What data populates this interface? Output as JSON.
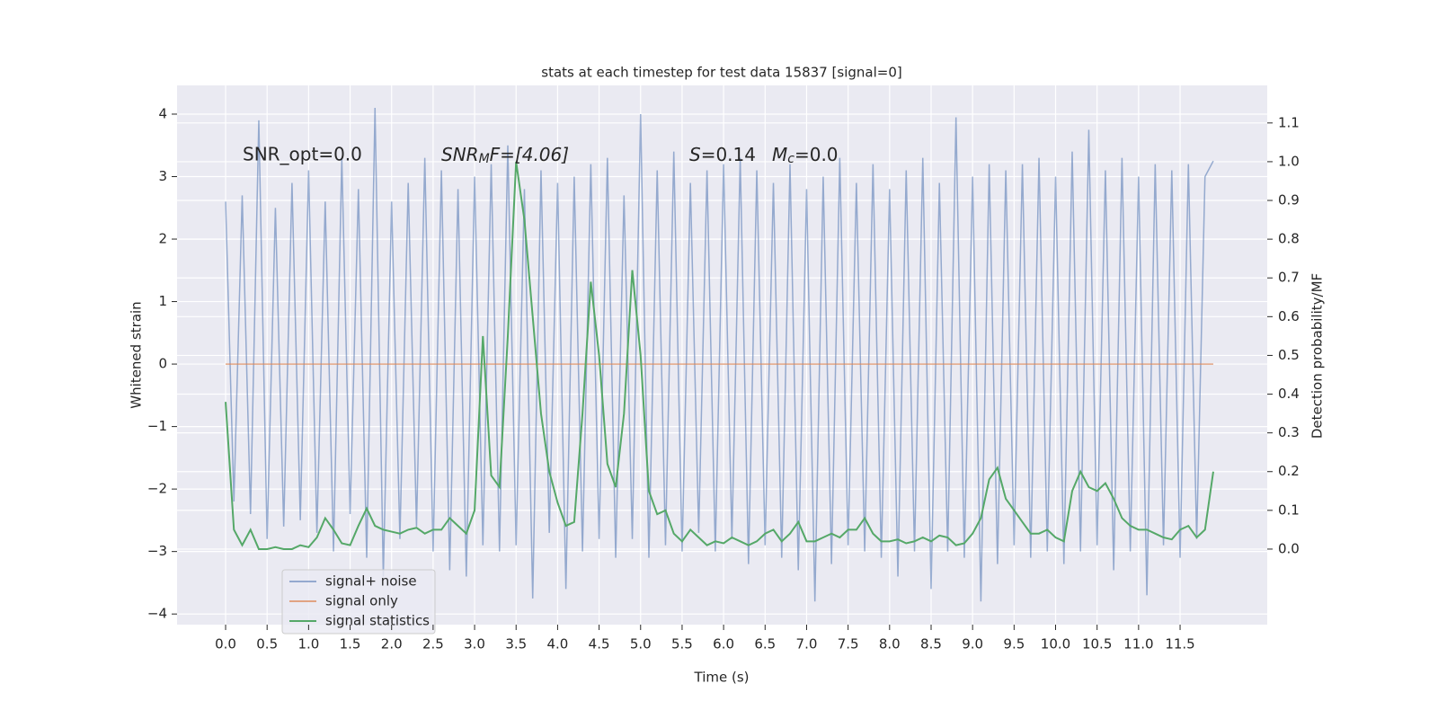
{
  "chart_data": {
    "type": "line",
    "title": "stats at each timestep for test data 15837 [signal=0]",
    "xlabel": "Time (s)",
    "ylabel": "Whitened strain",
    "y2label": "Detection probability/MF",
    "annotations": [
      "SNR_opt=0.0",
      [
        "SNR",
        "M",
        "F=[4.06]"
      ],
      [
        "S",
        "=0.14",
        "M",
        "c",
        "=0.0"
      ]
    ],
    "x": [
      0.0,
      0.1,
      0.2,
      0.3,
      0.4,
      0.5,
      0.6,
      0.7,
      0.8,
      0.9,
      1.0,
      1.1,
      1.2,
      1.3,
      1.4,
      1.5,
      1.6,
      1.7,
      1.8,
      1.9,
      2.0,
      2.1,
      2.2,
      2.3,
      2.4,
      2.5,
      2.6,
      2.7,
      2.8,
      2.9,
      3.0,
      3.1,
      3.2,
      3.3,
      3.4,
      3.5,
      3.6,
      3.7,
      3.8,
      3.9,
      4.0,
      4.1,
      4.2,
      4.3,
      4.4,
      4.5,
      4.6,
      4.7,
      4.8,
      4.9,
      5.0,
      5.1,
      5.2,
      5.3,
      5.4,
      5.5,
      5.6,
      5.7,
      5.8,
      5.9,
      6.0,
      6.1,
      6.2,
      6.3,
      6.4,
      6.5,
      6.6,
      6.7,
      6.8,
      6.9,
      7.0,
      7.1,
      7.2,
      7.3,
      7.4,
      7.5,
      7.6,
      7.7,
      7.8,
      7.9,
      8.0,
      8.1,
      8.2,
      8.3,
      8.4,
      8.5,
      8.6,
      8.7,
      8.8,
      8.9,
      9.0,
      9.1,
      9.2,
      9.3,
      9.4,
      9.5,
      9.6,
      9.7,
      9.8,
      9.9,
      10.0,
      10.1,
      10.2,
      10.3,
      10.4,
      10.5,
      10.6,
      10.7,
      10.8,
      10.9,
      11.0,
      11.1,
      11.2,
      11.3,
      11.4,
      11.5,
      11.6,
      11.7,
      11.8,
      11.9
    ],
    "series": [
      {
        "name": "signal+ noise",
        "color": "#4c72b0",
        "alpha": 0.55,
        "values": [
          2.6,
          -2.2,
          2.7,
          -2.4,
          3.9,
          -2.8,
          2.5,
          -2.6,
          2.9,
          -2.5,
          3.1,
          -2.7,
          2.6,
          -3.0,
          3.3,
          -2.4,
          2.8,
          -3.1,
          4.1,
          -3.4,
          2.6,
          -2.8,
          2.9,
          -2.6,
          3.3,
          -3.0,
          3.1,
          -3.3,
          2.8,
          -3.4,
          3.0,
          -2.9,
          3.2,
          -3.0,
          3.5,
          -2.9,
          2.8,
          -3.75,
          3.1,
          -2.7,
          2.9,
          -3.6,
          3.0,
          -3.0,
          3.2,
          -2.8,
          3.3,
          -3.1,
          2.7,
          -2.8,
          4.0,
          -3.1,
          3.1,
          -2.9,
          3.4,
          -3.0,
          2.9,
          -2.7,
          3.1,
          -3.0,
          3.2,
          -2.8,
          3.3,
          -3.2,
          3.1,
          -2.9,
          2.9,
          -3.1,
          3.2,
          -3.3,
          2.8,
          -3.8,
          3.0,
          -3.2,
          3.3,
          -2.9,
          2.9,
          -3.0,
          3.2,
          -3.1,
          2.8,
          -3.4,
          3.1,
          -3.0,
          3.3,
          -3.6,
          2.9,
          -3.0,
          3.95,
          -3.1,
          3.0,
          -3.8,
          3.2,
          -3.2,
          3.1,
          -2.9,
          3.2,
          -3.1,
          3.3,
          -3.0,
          3.0,
          -3.2,
          3.4,
          -3.0,
          3.75,
          -2.9,
          3.1,
          -3.3,
          3.3,
          -3.0,
          3.0,
          -3.7,
          3.2,
          -2.9,
          3.1,
          -3.1,
          3.2,
          -2.8,
          3.0,
          3.25
        ]
      },
      {
        "name": "signal only",
        "color": "#dd8452",
        "alpha": 0.7,
        "values": [
          0,
          0,
          0,
          0,
          0,
          0,
          0,
          0,
          0,
          0,
          0,
          0,
          0,
          0,
          0,
          0,
          0,
          0,
          0,
          0,
          0,
          0,
          0,
          0,
          0,
          0,
          0,
          0,
          0,
          0,
          0,
          0,
          0,
          0,
          0,
          0,
          0,
          0,
          0,
          0,
          0,
          0,
          0,
          0,
          0,
          0,
          0,
          0,
          0,
          0,
          0,
          0,
          0,
          0,
          0,
          0,
          0,
          0,
          0,
          0,
          0,
          0,
          0,
          0,
          0,
          0,
          0,
          0,
          0,
          0,
          0,
          0,
          0,
          0,
          0,
          0,
          0,
          0,
          0,
          0,
          0,
          0,
          0,
          0,
          0,
          0,
          0,
          0,
          0,
          0,
          0,
          0,
          0,
          0,
          0,
          0,
          0,
          0,
          0,
          0,
          0,
          0,
          0,
          0,
          0,
          0,
          0,
          0,
          0,
          0,
          0,
          0,
          0,
          0,
          0,
          0,
          0,
          0,
          0,
          0
        ]
      },
      {
        "name": "signal statistics",
        "color": "#55a868",
        "axis": "y2",
        "alpha": 1,
        "values": [
          0.38,
          0.05,
          0.01,
          0.05,
          0.0,
          0.0,
          0.005,
          0.0,
          0.0,
          0.01,
          0.005,
          0.03,
          0.08,
          0.05,
          0.015,
          0.01,
          0.06,
          0.105,
          0.06,
          0.05,
          0.045,
          0.04,
          0.05,
          0.055,
          0.04,
          0.05,
          0.05,
          0.08,
          0.06,
          0.04,
          0.1,
          0.55,
          0.19,
          0.16,
          0.55,
          1.0,
          0.85,
          0.6,
          0.35,
          0.2,
          0.12,
          0.06,
          0.07,
          0.35,
          0.69,
          0.5,
          0.22,
          0.16,
          0.35,
          0.72,
          0.5,
          0.15,
          0.09,
          0.1,
          0.04,
          0.02,
          0.05,
          0.03,
          0.01,
          0.02,
          0.015,
          0.03,
          0.02,
          0.01,
          0.02,
          0.04,
          0.05,
          0.02,
          0.04,
          0.07,
          0.02,
          0.02,
          0.03,
          0.04,
          0.03,
          0.05,
          0.05,
          0.08,
          0.04,
          0.02,
          0.02,
          0.025,
          0.015,
          0.02,
          0.03,
          0.02,
          0.035,
          0.03,
          0.01,
          0.015,
          0.04,
          0.08,
          0.18,
          0.21,
          0.13,
          0.1,
          0.07,
          0.04,
          0.04,
          0.05,
          0.03,
          0.02,
          0.15,
          0.2,
          0.16,
          0.15,
          0.17,
          0.13,
          0.08,
          0.06,
          0.05,
          0.05,
          0.04,
          0.03,
          0.025,
          0.05,
          0.06,
          0.03,
          0.05,
          0.2
        ]
      }
    ],
    "xlim": [
      -0.585,
      12.55
    ],
    "xticks": [
      {
        "value": 0,
        "label": "0.0"
      },
      0.5,
      {
        "value": 1,
        "label": "1.0"
      },
      1.5,
      {
        "value": 2,
        "label": "2.0"
      },
      2.5,
      {
        "value": 3,
        "label": "3.0"
      },
      3.5,
      {
        "value": 4,
        "label": "4.0"
      },
      4.5,
      {
        "value": 5,
        "label": "5.0"
      },
      5.5,
      {
        "value": 6,
        "label": "6.0"
      },
      6.5,
      {
        "value": 7,
        "label": "7.0"
      },
      7.5,
      {
        "value": 8,
        "label": "8.0"
      },
      8.5,
      {
        "value": 9,
        "label": "9.0"
      },
      9.5,
      {
        "value": 10,
        "label": "10.0"
      },
      10.5,
      {
        "value": 11,
        "label": "11.0"
      },
      11.5
    ],
    "ylim": [
      -4.17,
      4.46
    ],
    "yticks": [
      {
        "value": -4,
        "label": "−4"
      },
      {
        "value": -3,
        "label": "−3"
      },
      {
        "value": -2,
        "label": "−2"
      },
      {
        "value": -1,
        "label": "−1"
      },
      0,
      1,
      2,
      3,
      4
    ],
    "y2lim": [
      -0.195,
      1.197
    ],
    "y2ticks": [
      {
        "value": 0,
        "label": "0.0"
      },
      0.1,
      0.2,
      0.3,
      0.4,
      0.5,
      0.6,
      0.7,
      0.8,
      0.9,
      {
        "value": 1,
        "label": "1.0"
      },
      1.1
    ],
    "grid": true,
    "legend": "lower left"
  }
}
